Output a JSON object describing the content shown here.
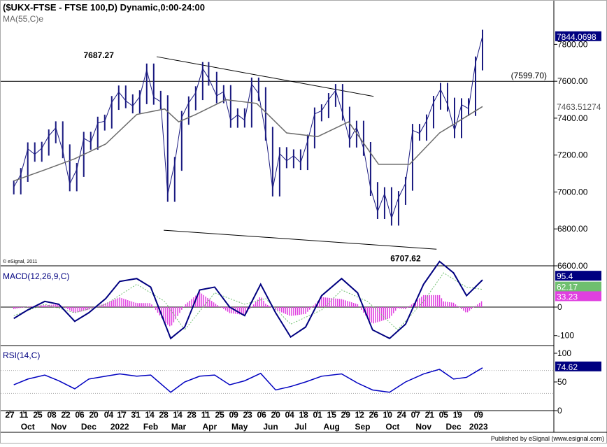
{
  "chart_data": {
    "type": "line",
    "colors": {
      "bar": "#1a1a80",
      "price_ma": "#6b6b6b",
      "macd_line": "#000080",
      "macd_signal": "#6fbf6f",
      "macd_hist": "#e040e0",
      "rsi": "#0000c0",
      "rsi_label_bg": "#000080",
      "grid": "#cccccc"
    },
    "price": {
      "title": "($UKX-FTSE - FTSE 100,D) Dynamic,0:00-24:00",
      "ma_label": "MA(55,C)e",
      "copyright": "© eSignal, 2011",
      "yticks": [
        "7800.00",
        "7600.00",
        "7400.00",
        "7200.00",
        "7000.00",
        "6800.00",
        "6600.00"
      ],
      "ylim": [
        6600,
        7900
      ],
      "last_value": "7844.0698",
      "ma_value": "7463.51274",
      "level_label": "(7599.70)",
      "level": 7599.7,
      "annotations": [
        {
          "text": "7687.27",
          "value": 7687.27
        },
        {
          "text": "6707.62",
          "value": 6707.62
        }
      ],
      "trendlines": [
        {
          "start": [
            "2022-02-21",
            7733
          ],
          "end": [
            "2022-09-26",
            7518
          ]
        },
        {
          "start": [
            "2022-02-28",
            6793
          ],
          "end": [
            "2022-11-28",
            6690
          ]
        }
      ],
      "close_series": [
        [
          "2021-10-01",
          7027
        ],
        [
          "2021-10-08",
          7095
        ],
        [
          "2021-10-15",
          7234
        ],
        [
          "2021-10-22",
          7204
        ],
        [
          "2021-10-29",
          7237
        ],
        [
          "2021-11-05",
          7304
        ],
        [
          "2021-11-12",
          7348
        ],
        [
          "2021-11-19",
          7223
        ],
        [
          "2021-11-26",
          7044
        ],
        [
          "2021-12-03",
          7122
        ],
        [
          "2021-12-10",
          7291
        ],
        [
          "2021-12-17",
          7269
        ],
        [
          "2021-12-24",
          7373
        ],
        [
          "2021-12-31",
          7384
        ],
        [
          "2022-01-07",
          7485
        ],
        [
          "2022-01-14",
          7542
        ],
        [
          "2022-01-21",
          7494
        ],
        [
          "2022-01-28",
          7466
        ],
        [
          "2022-02-04",
          7516
        ],
        [
          "2022-02-11",
          7661
        ],
        [
          "2022-02-18",
          7513
        ],
        [
          "2022-02-25",
          7489
        ],
        [
          "2022-03-04",
          6987
        ],
        [
          "2022-03-11",
          7155
        ],
        [
          "2022-03-18",
          7404
        ],
        [
          "2022-03-25",
          7483
        ],
        [
          "2022-04-01",
          7538
        ],
        [
          "2022-04-08",
          7669
        ],
        [
          "2022-04-14",
          7616
        ],
        [
          "2022-04-22",
          7521
        ],
        [
          "2022-04-29",
          7544
        ],
        [
          "2022-05-06",
          7388
        ],
        [
          "2022-05-13",
          7418
        ],
        [
          "2022-05-20",
          7389
        ],
        [
          "2022-05-27",
          7585
        ],
        [
          "2022-06-03",
          7533
        ],
        [
          "2022-06-10",
          7318
        ],
        [
          "2022-06-17",
          7016
        ],
        [
          "2022-06-24",
          7208
        ],
        [
          "2022-07-01",
          7169
        ],
        [
          "2022-07-08",
          7196
        ],
        [
          "2022-07-15",
          7159
        ],
        [
          "2022-07-22",
          7276
        ],
        [
          "2022-07-29",
          7423
        ],
        [
          "2022-08-05",
          7440
        ],
        [
          "2022-08-12",
          7501
        ],
        [
          "2022-08-19",
          7550
        ],
        [
          "2022-08-26",
          7427
        ],
        [
          "2022-09-02",
          7281
        ],
        [
          "2022-09-09",
          7351
        ],
        [
          "2022-09-16",
          7236
        ],
        [
          "2022-09-23",
          7019
        ],
        [
          "2022-09-30",
          6894
        ],
        [
          "2022-10-07",
          6991
        ],
        [
          "2022-10-14",
          6858
        ],
        [
          "2022-10-21",
          6970
        ],
        [
          "2022-10-28",
          7047
        ],
        [
          "2022-11-04",
          7334
        ],
        [
          "2022-11-11",
          7318
        ],
        [
          "2022-11-18",
          7385
        ],
        [
          "2022-11-25",
          7486
        ],
        [
          "2022-12-02",
          7556
        ],
        [
          "2022-12-09",
          7476
        ],
        [
          "2022-12-16",
          7332
        ],
        [
          "2022-12-23",
          7473
        ],
        [
          "2022-12-30",
          7452
        ],
        [
          "2023-01-06",
          7699
        ],
        [
          "2023-01-13",
          7844
        ]
      ],
      "ma_series": [
        [
          "2021-10-01",
          7060
        ],
        [
          "2021-11-01",
          7120
        ],
        [
          "2021-12-01",
          7180
        ],
        [
          "2022-01-01",
          7260
        ],
        [
          "2022-02-01",
          7420
        ],
        [
          "2022-03-01",
          7450
        ],
        [
          "2022-03-15",
          7380
        ],
        [
          "2022-04-01",
          7420
        ],
        [
          "2022-05-01",
          7500
        ],
        [
          "2022-06-01",
          7480
        ],
        [
          "2022-07-01",
          7320
        ],
        [
          "2022-08-01",
          7300
        ],
        [
          "2022-09-01",
          7380
        ],
        [
          "2022-10-01",
          7150
        ],
        [
          "2022-11-01",
          7150
        ],
        [
          "2022-12-01",
          7320
        ],
        [
          "2023-01-13",
          7463
        ]
      ]
    },
    "macd": {
      "label": "MACD(12,26,9,C)",
      "yticks": [
        "0",
        "-100"
      ],
      "ylim": [
        -135,
        130
      ],
      "last_macd": "95.4",
      "last_signal": "62.17",
      "last_hist": "33.23",
      "macd_series": [
        [
          "2021-10-01",
          -40
        ],
        [
          "2021-10-15",
          -10
        ],
        [
          "2021-11-01",
          20
        ],
        [
          "2021-11-15",
          10
        ],
        [
          "2021-12-01",
          -50
        ],
        [
          "2021-12-15",
          -20
        ],
        [
          "2022-01-01",
          30
        ],
        [
          "2022-01-15",
          90
        ],
        [
          "2022-02-01",
          100
        ],
        [
          "2022-02-15",
          70
        ],
        [
          "2022-03-07",
          -110
        ],
        [
          "2022-03-21",
          -70
        ],
        [
          "2022-04-05",
          60
        ],
        [
          "2022-04-20",
          70
        ],
        [
          "2022-05-05",
          0
        ],
        [
          "2022-05-20",
          -30
        ],
        [
          "2022-06-05",
          80
        ],
        [
          "2022-06-20",
          -20
        ],
        [
          "2022-07-05",
          -105
        ],
        [
          "2022-07-20",
          -70
        ],
        [
          "2022-08-05",
          40
        ],
        [
          "2022-08-25",
          100
        ],
        [
          "2022-09-10",
          50
        ],
        [
          "2022-09-25",
          -80
        ],
        [
          "2022-10-12",
          -110
        ],
        [
          "2022-10-28",
          -60
        ],
        [
          "2022-11-15",
          80
        ],
        [
          "2022-12-01",
          160
        ],
        [
          "2022-12-15",
          120
        ],
        [
          "2022-12-28",
          40
        ],
        [
          "2023-01-13",
          95.4
        ]
      ],
      "signal_series": [
        [
          "2021-10-01",
          -30
        ],
        [
          "2021-11-01",
          10
        ],
        [
          "2021-12-01",
          -20
        ],
        [
          "2022-01-01",
          10
        ],
        [
          "2022-02-01",
          80
        ],
        [
          "2022-03-01",
          20
        ],
        [
          "2022-03-21",
          -80
        ],
        [
          "2022-04-20",
          50
        ],
        [
          "2022-05-20",
          10
        ],
        [
          "2022-06-10",
          30
        ],
        [
          "2022-07-05",
          -60
        ],
        [
          "2022-08-05",
          -10
        ],
        [
          "2022-08-25",
          60
        ],
        [
          "2022-09-20",
          20
        ],
        [
          "2022-10-20",
          -80
        ],
        [
          "2022-11-15",
          20
        ],
        [
          "2022-12-05",
          120
        ],
        [
          "2022-12-28",
          70
        ],
        [
          "2023-01-13",
          62.17
        ]
      ]
    },
    "rsi": {
      "label": "RSI(14,C)",
      "yticks": [
        "100",
        "50",
        "0"
      ],
      "ylim": [
        0,
        100
      ],
      "levels": [
        70,
        30
      ],
      "last_value": "74.62",
      "series": [
        [
          "2021-10-01",
          45
        ],
        [
          "2021-10-15",
          55
        ],
        [
          "2021-11-01",
          62
        ],
        [
          "2021-11-15",
          52
        ],
        [
          "2021-12-01",
          38
        ],
        [
          "2021-12-15",
          55
        ],
        [
          "2022-01-01",
          60
        ],
        [
          "2022-01-15",
          64
        ],
        [
          "2022-02-01",
          60
        ],
        [
          "2022-02-15",
          62
        ],
        [
          "2022-03-07",
          32
        ],
        [
          "2022-03-21",
          50
        ],
        [
          "2022-04-05",
          60
        ],
        [
          "2022-04-20",
          62
        ],
        [
          "2022-05-05",
          45
        ],
        [
          "2022-05-20",
          52
        ],
        [
          "2022-06-05",
          65
        ],
        [
          "2022-06-20",
          36
        ],
        [
          "2022-07-05",
          42
        ],
        [
          "2022-07-20",
          50
        ],
        [
          "2022-08-05",
          60
        ],
        [
          "2022-08-25",
          64
        ],
        [
          "2022-09-10",
          48
        ],
        [
          "2022-09-25",
          36
        ],
        [
          "2022-10-12",
          32
        ],
        [
          "2022-10-28",
          50
        ],
        [
          "2022-11-15",
          64
        ],
        [
          "2022-12-01",
          72
        ],
        [
          "2022-12-15",
          55
        ],
        [
          "2022-12-28",
          58
        ],
        [
          "2023-01-13",
          74.62
        ]
      ]
    },
    "xaxis": {
      "day_ticks": [
        [
          "2021-09-27",
          "27"
        ],
        [
          "2021-10-11",
          "11"
        ],
        [
          "2021-10-25",
          "25"
        ],
        [
          "2021-11-08",
          "08"
        ],
        [
          "2021-11-22",
          "22"
        ],
        [
          "2021-12-06",
          "06"
        ],
        [
          "2021-12-20",
          "20"
        ],
        [
          "2022-01-04",
          "04"
        ],
        [
          "2022-01-17",
          "17"
        ],
        [
          "2022-01-31",
          "31"
        ],
        [
          "2022-02-14",
          "14"
        ],
        [
          "2022-02-28",
          "28"
        ],
        [
          "2022-03-14",
          "14"
        ],
        [
          "2022-03-28",
          "28"
        ],
        [
          "2022-04-11",
          "11"
        ],
        [
          "2022-04-25",
          "25"
        ],
        [
          "2022-05-09",
          "09"
        ],
        [
          "2022-05-23",
          "23"
        ],
        [
          "2022-06-06",
          "06"
        ],
        [
          "2022-06-20",
          "20"
        ],
        [
          "2022-07-04",
          "04"
        ],
        [
          "2022-07-18",
          "18"
        ],
        [
          "2022-08-01",
          "01"
        ],
        [
          "2022-08-15",
          "15"
        ],
        [
          "2022-08-29",
          "29"
        ],
        [
          "2022-09-12",
          "12"
        ],
        [
          "2022-09-26",
          "26"
        ],
        [
          "2022-10-10",
          "10"
        ],
        [
          "2022-10-24",
          "24"
        ],
        [
          "2022-11-07",
          "07"
        ],
        [
          "2022-11-21",
          "21"
        ],
        [
          "2022-12-05",
          "05"
        ],
        [
          "2022-12-19",
          "19"
        ],
        [
          "2023-01-09",
          "09"
        ]
      ],
      "month_ticks": [
        [
          "2021-10-15",
          "Oct"
        ],
        [
          "2021-11-15",
          "Nov"
        ],
        [
          "2021-12-15",
          "Dec"
        ],
        [
          "2022-01-15",
          "2022"
        ],
        [
          "2022-02-15",
          "Feb"
        ],
        [
          "2022-03-15",
          "Mar"
        ],
        [
          "2022-04-15",
          "Apr"
        ],
        [
          "2022-05-15",
          "May"
        ],
        [
          "2022-06-15",
          "Jun"
        ],
        [
          "2022-07-15",
          "Jul"
        ],
        [
          "2022-08-15",
          "Aug"
        ],
        [
          "2022-09-15",
          "Sep"
        ],
        [
          "2022-10-15",
          "Oct"
        ],
        [
          "2022-11-15",
          "Nov"
        ],
        [
          "2022-12-15",
          "Dec"
        ],
        [
          "2023-01-09",
          "2023"
        ]
      ],
      "xlim": [
        "2021-09-20",
        "2023-01-13"
      ]
    },
    "footer": "Published by eSignal (www.esignal.com)"
  }
}
